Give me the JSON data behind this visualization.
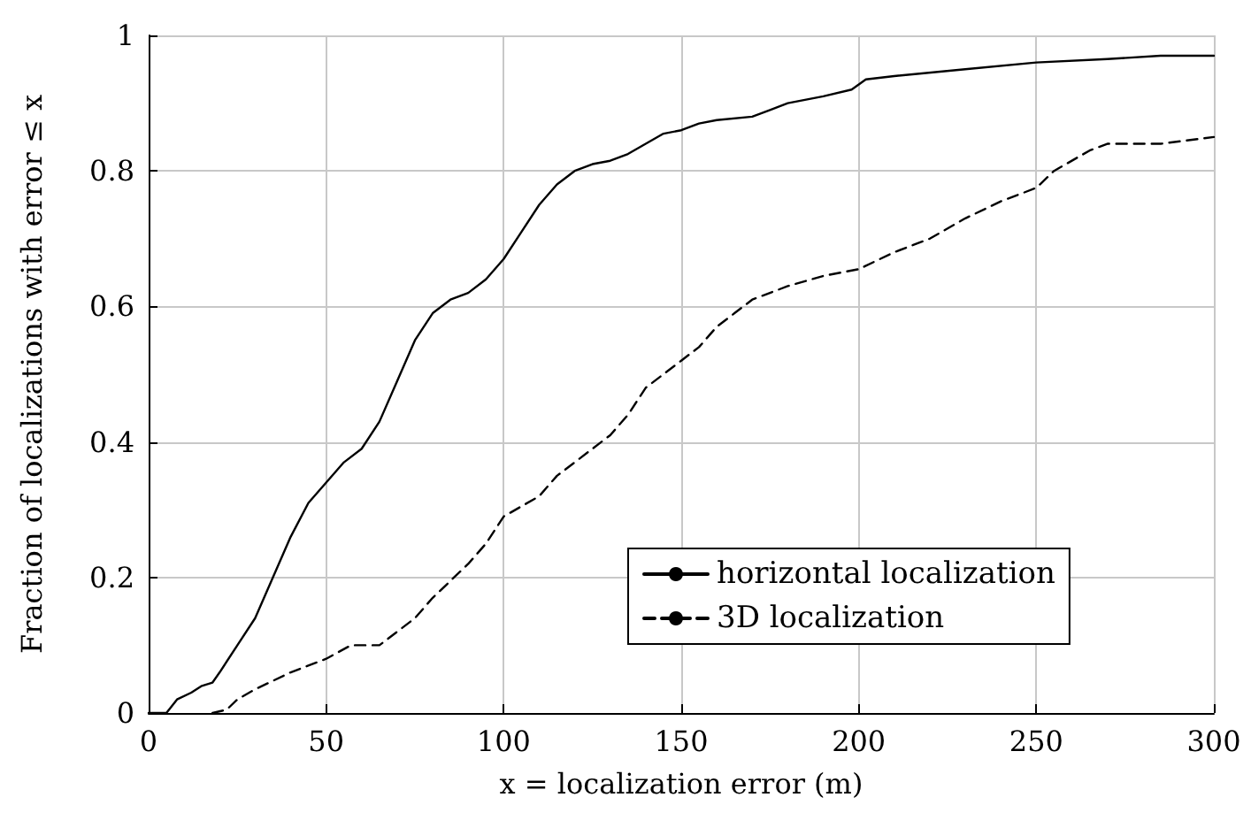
{
  "chart_data": {
    "type": "line",
    "xlabel": "x = localization error (m)",
    "ylabel": "Fraction of localizations with error ≤ x",
    "xlim": [
      0,
      300
    ],
    "xticks": [
      0,
      50,
      100,
      150,
      200,
      250,
      300
    ],
    "ylim": [
      0,
      1
    ],
    "yticks": [
      0,
      0.2,
      0.4,
      0.6,
      0.8,
      1
    ],
    "grid": true,
    "legend": "bottom right",
    "marker": "none",
    "series": [
      {
        "name": "horizontal localization",
        "color": "#000000",
        "line_style": "solid",
        "x": [
          0,
          5,
          8,
          12,
          15,
          18,
          20,
          25,
          30,
          35,
          40,
          45,
          50,
          55,
          60,
          65,
          70,
          75,
          80,
          85,
          90,
          95,
          100,
          105,
          110,
          115,
          120,
          125,
          130,
          135,
          140,
          145,
          150,
          155,
          160,
          170,
          175,
          180,
          190,
          198,
          202,
          210,
          230,
          250,
          270,
          285,
          300
        ],
        "values": [
          0,
          0,
          0.02,
          0.03,
          0.04,
          0.045,
          0.06,
          0.1,
          0.14,
          0.2,
          0.26,
          0.31,
          0.34,
          0.37,
          0.39,
          0.43,
          0.49,
          0.55,
          0.59,
          0.61,
          0.62,
          0.64,
          0.67,
          0.71,
          0.75,
          0.78,
          0.8,
          0.81,
          0.815,
          0.825,
          0.84,
          0.855,
          0.86,
          0.87,
          0.875,
          0.88,
          0.89,
          0.9,
          0.91,
          0.92,
          0.935,
          0.94,
          0.95,
          0.96,
          0.965,
          0.97,
          0.97
        ]
      },
      {
        "name": "3D localization",
        "color": "#000000",
        "line_style": "dashed",
        "x": [
          18,
          22,
          25,
          30,
          40,
          50,
          57,
          65,
          70,
          75,
          80,
          90,
          95,
          100,
          110,
          115,
          120,
          130,
          135,
          140,
          145,
          150,
          155,
          160,
          165,
          170,
          180,
          190,
          200,
          210,
          220,
          230,
          240,
          250,
          255,
          265,
          270,
          285,
          300
        ],
        "values": [
          0,
          0.005,
          0.02,
          0.035,
          0.06,
          0.08,
          0.1,
          0.1,
          0.12,
          0.14,
          0.17,
          0.22,
          0.25,
          0.29,
          0.32,
          0.35,
          0.37,
          0.41,
          0.44,
          0.48,
          0.5,
          0.52,
          0.54,
          0.57,
          0.59,
          0.61,
          0.63,
          0.645,
          0.655,
          0.68,
          0.7,
          0.73,
          0.755,
          0.775,
          0.8,
          0.83,
          0.84,
          0.84,
          0.85
        ]
      }
    ]
  }
}
